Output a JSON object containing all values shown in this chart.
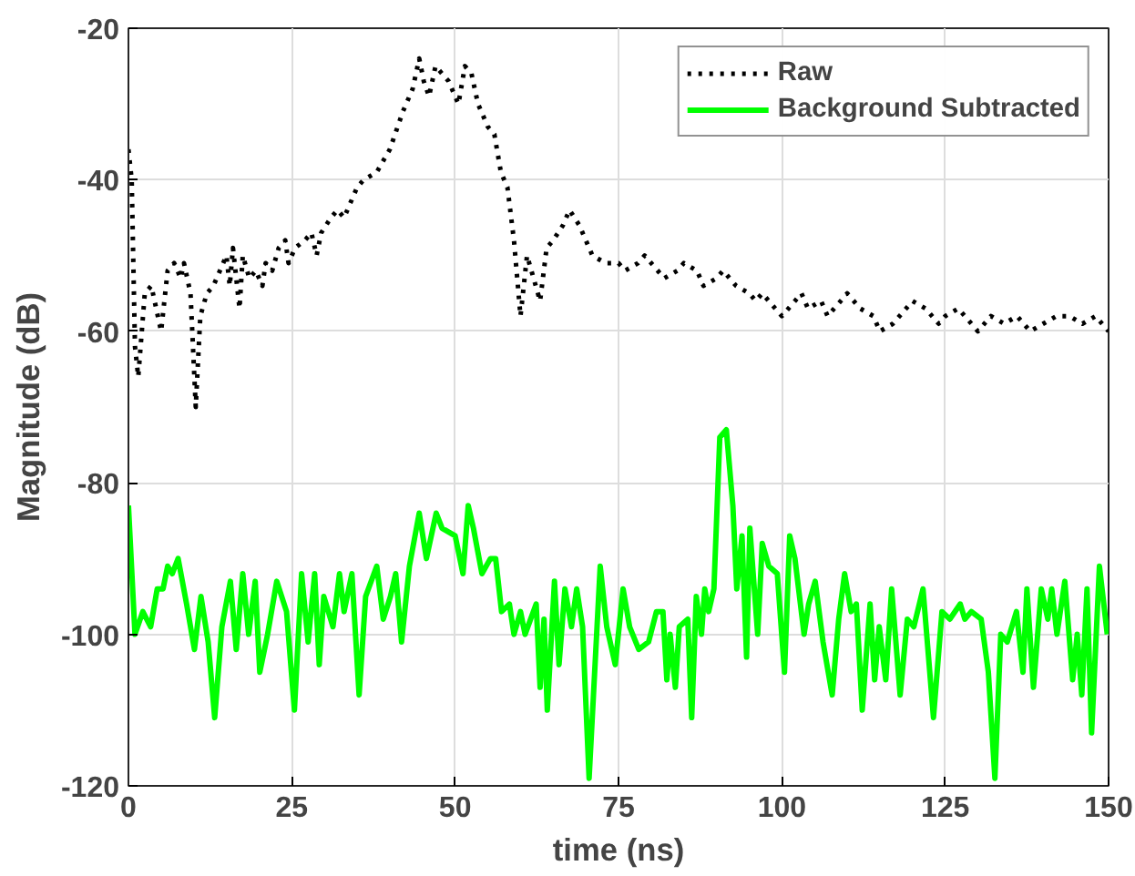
{
  "chart_data": {
    "type": "line",
    "xlabel": "time (ns)",
    "ylabel": "Magnitude (dB)",
    "xlim": [
      0,
      150
    ],
    "xticks": [
      0,
      25,
      50,
      75,
      100,
      125,
      150
    ],
    "ylim": [
      -120,
      -20
    ],
    "yticks": [
      -120,
      -100,
      -80,
      -60,
      -40,
      -20
    ],
    "grid": true,
    "legend": "top right",
    "series": [
      {
        "name": "Raw",
        "color": "#000000",
        "line_style": "dotted",
        "x": [
          0,
          0.5,
          1,
          1.5,
          2.5,
          3.5,
          4.5,
          5,
          6,
          7,
          8,
          8.5,
          9.5,
          10.3,
          11,
          12,
          13,
          14,
          15,
          15.5,
          16,
          17,
          17.5,
          18.5,
          19.5,
          20.5,
          21,
          22,
          23,
          24,
          24.5,
          25.5,
          27,
          28,
          28.8,
          29.5,
          31,
          32,
          33,
          34,
          35,
          36,
          38,
          40,
          42,
          43.5,
          44.5,
          45.2,
          46,
          47,
          49,
          50.5,
          51.5,
          52.5,
          53.5,
          55,
          56,
          57,
          58,
          59,
          60,
          61,
          62,
          63,
          64,
          65,
          66.5,
          67.5,
          69,
          70,
          71,
          73,
          75,
          76,
          78,
          79,
          80,
          82,
          84,
          85,
          87,
          88,
          90,
          91,
          93,
          95,
          96,
          97,
          99,
          100,
          102,
          103,
          104,
          106,
          107,
          109,
          110,
          112,
          114,
          115,
          117,
          119,
          120,
          122,
          124,
          125,
          127,
          128,
          130,
          132,
          134,
          136,
          138,
          140,
          142,
          144,
          146,
          148,
          150
        ],
        "values": [
          -36,
          -40,
          -62,
          -66,
          -55,
          -54,
          -58,
          -60,
          -52,
          -51,
          -53,
          -51,
          -55,
          -70,
          -58,
          -55,
          -54,
          -52,
          -50,
          -54,
          -49,
          -57,
          -50,
          -53,
          -52,
          -54,
          -51,
          -52,
          -49,
          -48,
          -51,
          -49,
          -48,
          -47,
          -50,
          -47,
          -45,
          -44,
          -45,
          -43,
          -41,
          -40,
          -39,
          -36,
          -31,
          -28,
          -24,
          -27,
          -29,
          -25,
          -27,
          -30,
          -25,
          -26,
          -30,
          -33,
          -34,
          -39,
          -41,
          -48,
          -58,
          -50,
          -53,
          -56,
          -49,
          -48,
          -46,
          -44,
          -46,
          -48,
          -50,
          -51,
          -51,
          -52,
          -51,
          -50,
          -51,
          -53,
          -52,
          -51,
          -52,
          -54,
          -53,
          -52,
          -54,
          -55,
          -56,
          -55,
          -57,
          -58,
          -56,
          -55,
          -57,
          -56,
          -58,
          -56,
          -55,
          -57,
          -58,
          -60,
          -59,
          -57,
          -56,
          -57,
          -59,
          -58,
          -57,
          -58,
          -60,
          -58,
          -59,
          -58,
          -60,
          -59,
          -58,
          -58,
          -59,
          -58,
          -60
        ]
      },
      {
        "name": "Background Subtracted",
        "color": "#00ff00",
        "line_style": "solid",
        "x": [
          0,
          1,
          2.2,
          3.4,
          4.4,
          5.3,
          6,
          6.7,
          7.6,
          8.9,
          10.1,
          11.1,
          12.2,
          13.2,
          14.3,
          15.6,
          16.5,
          17.5,
          18.4,
          19.4,
          20.1,
          21.3,
          22.7,
          24.2,
          25.4,
          26.5,
          27.5,
          28.5,
          29.2,
          29.9,
          31.3,
          32.3,
          33,
          34.2,
          35.3,
          36.3,
          38,
          39,
          40.1,
          40.9,
          41.8,
          43,
          44.5,
          45.6,
          47.1,
          48,
          50,
          51.2,
          52,
          52.8,
          54.1,
          55.4,
          56.2,
          57.1,
          58.3,
          59,
          60,
          60.7,
          62.4,
          63,
          63.6,
          64.1,
          65.2,
          65.9,
          66.8,
          67.8,
          68.6,
          69.5,
          70.5,
          72.2,
          73.2,
          74.5,
          75.7,
          76.7,
          78.1,
          79.6,
          80.8,
          81.8,
          82.4,
          82.9,
          83.7,
          84.3,
          85.6,
          86.2,
          86.9,
          87.7,
          88.2,
          88.8,
          89.6,
          90.5,
          91.5,
          92.5,
          93.1,
          93.9,
          94.6,
          95.1,
          96.3,
          97,
          98,
          99.3,
          100.4,
          101.2,
          102,
          103.4,
          104.1,
          105.1,
          106.3,
          107.7,
          108.7,
          109.6,
          110.6,
          111.4,
          112.3,
          113.5,
          114.2,
          114.9,
          115.9,
          116.8,
          118.1,
          119.2,
          120.2,
          121.6,
          123.2,
          124.5,
          125.7,
          127.3,
          128,
          129,
          130.5,
          131.6,
          132.6,
          133.5,
          134.5,
          135.9,
          136.9,
          137.5,
          138.5,
          139.7,
          140.7,
          141.3,
          142.1,
          143.3,
          144.5,
          145.2,
          145.9,
          146.7,
          147.4,
          148.6,
          149.8
        ],
        "values": [
          -83,
          -100,
          -97,
          -99,
          -94,
          -94,
          -91,
          -92,
          -90,
          -96,
          -102,
          -95,
          -101,
          -111,
          -99,
          -93,
          -102,
          -92,
          -100,
          -93,
          -105,
          -100,
          -93,
          -97,
          -110,
          -92,
          -101,
          -92,
          -104,
          -95,
          -99,
          -92,
          -97,
          -92,
          -108,
          -95,
          -91,
          -98,
          -95,
          -92,
          -101,
          -91,
          -84,
          -90,
          -84,
          -86,
          -87,
          -92,
          -83,
          -86,
          -92,
          -90,
          -90,
          -97,
          -96,
          -100,
          -97,
          -100,
          -96,
          -107,
          -98,
          -110,
          -93,
          -104,
          -94,
          -99,
          -94,
          -99,
          -119,
          -91,
          -99,
          -104,
          -94,
          -99,
          -102,
          -101,
          -97,
          -97,
          -106,
          -100,
          -107,
          -99,
          -98,
          -111,
          -95,
          -100,
          -94,
          -97,
          -94,
          -74,
          -73,
          -83,
          -94,
          -87,
          -103,
          -86,
          -100,
          -88,
          -91,
          -92,
          -105,
          -87,
          -90,
          -100,
          -96,
          -93,
          -101,
          -108,
          -98,
          -92,
          -97,
          -96,
          -110,
          -96,
          -106,
          -99,
          -106,
          -94,
          -108,
          -98,
          -99,
          -94,
          -111,
          -97,
          -98,
          -96,
          -98,
          -97,
          -98,
          -105,
          -119,
          -100,
          -101,
          -97,
          -105,
          -94,
          -107,
          -94,
          -98,
          -94,
          -100,
          -93,
          -106,
          -100,
          -108,
          -94,
          -113,
          -91,
          -100
        ]
      }
    ]
  }
}
